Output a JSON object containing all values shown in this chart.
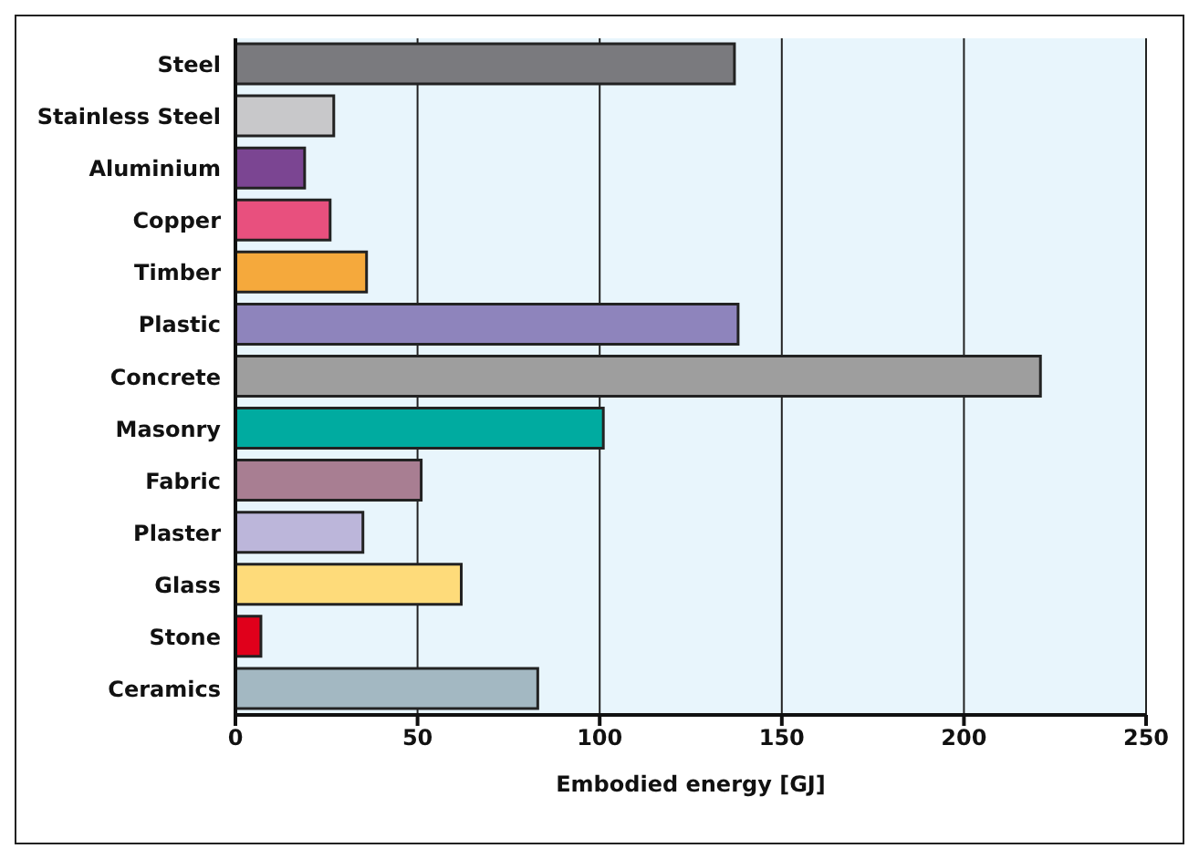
{
  "chart_data": {
    "type": "bar",
    "orientation": "horizontal",
    "xlabel": "Embodied energy [GJ]",
    "categories": [
      "Steel",
      "Stainless Steel",
      "Aluminium",
      "Copper",
      "Timber",
      "Plastic",
      "Concrete",
      "Masonry",
      "Fabric",
      "Plaster",
      "Glass",
      "Stone",
      "Ceramics"
    ],
    "values": [
      137,
      27,
      19,
      26,
      36,
      138,
      221,
      101,
      51,
      35,
      62,
      7,
      83
    ],
    "colors": [
      "#7a7a7e",
      "#c8c8ca",
      "#7b4592",
      "#e8507e",
      "#f5a93c",
      "#8e84bc",
      "#9e9e9e",
      "#00aba0",
      "#a87e92",
      "#bcb6da",
      "#fedb7a",
      "#e0001b",
      "#a3b8c2"
    ],
    "xlim": [
      0,
      250
    ],
    "xticks": [
      0,
      50,
      100,
      150,
      200,
      250
    ],
    "grid": "x"
  }
}
